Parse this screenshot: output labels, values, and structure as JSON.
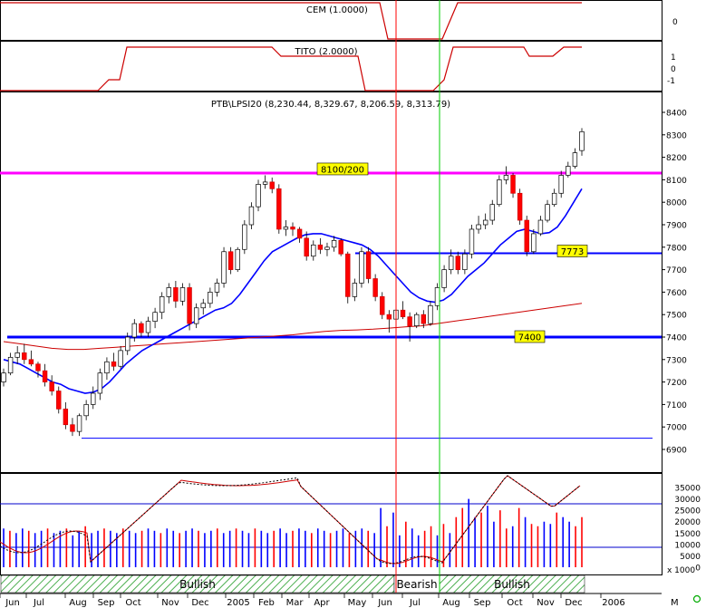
{
  "panels": {
    "cem": {
      "label": "CEM (1.0000)",
      "ticks": [
        "0"
      ]
    },
    "tito": {
      "label": "TITO (2.0000)",
      "ticks": [
        "1",
        "0",
        "-1"
      ]
    },
    "price": {
      "title": "PTB\\LPSI20 (8,230.44, 8,329.67, 8,206.59, 8,313.79)",
      "ticks": [
        "8400",
        "8300",
        "8200",
        "8100",
        "8000",
        "7900",
        "7800",
        "7700",
        "7600",
        "7500",
        "7400",
        "7300",
        "7200",
        "7100",
        "7000",
        "6900"
      ]
    },
    "volume": {
      "ticks": [
        "35000",
        "30000",
        "25000",
        "20000",
        "15000",
        "10000",
        "5000",
        "0"
      ],
      "scale_label": "x 1000"
    }
  },
  "annotations": {
    "resistance_label": "8100/200",
    "level_7773": "7773",
    "level_7400": "7400"
  },
  "signal_bar": {
    "labels": [
      "Bullish",
      "Bearish",
      "Bullish"
    ]
  },
  "x_axis": {
    "labels": [
      "Jun",
      "Jul",
      "Aug",
      "Sep",
      "Oct",
      "Nov",
      "Dec",
      "2005",
      "Feb",
      "Mar",
      "Apr",
      "May",
      "Jun",
      "Jul",
      "Aug",
      "Sep",
      "Oct",
      "Nov",
      "Dec",
      "2006"
    ],
    "extra_label": "M"
  },
  "colors": {
    "up_candle": "#ffffff",
    "down_candle": "#ff0000",
    "moving_avg_short": "#0000ff",
    "moving_avg_long": "#cc0000",
    "resistance_line": "#ff00ff",
    "support_line": "#0000ff",
    "label_bg": "#ffff00",
    "bearish_marker": "#ff0000",
    "bullish_marker": "#00cc00",
    "volume_up": "#0000ff",
    "volume_down": "#ff0000"
  },
  "chart_data": [
    {
      "type": "line",
      "name": "CEM (1.0000)",
      "x": [
        0,
        26,
        27,
        28,
        29,
        30,
        31,
        32,
        33,
        34,
        35,
        36,
        37,
        38,
        39,
        40,
        41,
        42,
        43,
        44,
        45,
        46,
        47,
        48,
        49,
        50,
        51,
        52,
        53,
        54,
        55,
        56,
        57,
        58,
        59,
        60,
        61,
        62,
        63,
        64,
        65,
        66,
        67,
        68,
        69,
        70,
        71,
        72,
        73,
        74,
        75,
        76,
        77,
        78,
        79,
        80,
        81,
        82,
        83,
        84,
        85,
        86,
        87,
        88,
        89,
        90,
        91,
        92,
        93,
        94,
        95,
        96,
        97,
        98,
        99,
        100,
        101,
        102,
        103,
        104,
        105,
        106,
        107,
        108,
        109,
        110,
        111,
        112,
        113,
        114,
        115,
        116,
        117,
        118,
        119,
        120,
        121,
        122,
        123,
        124,
        125,
        126,
        127,
        128,
        129,
        130,
        131,
        132,
        133,
        134,
        135,
        136,
        137,
        138,
        139,
        140,
        141,
        142,
        143,
        144,
        145,
        146,
        147,
        148,
        149,
        150,
        151,
        152,
        153,
        154,
        155,
        156,
        157,
        158,
        159,
        160
      ],
      "values_summary": "stepwise: 1 until week ~105, 0 until ~126, then 1"
    },
    {
      "type": "candlestick",
      "name": "PTB\\LPSI20",
      "period": "weekly",
      "ylim": [
        6900,
        8400
      ],
      "x_labels": [
        "Jun",
        "Jul",
        "Aug",
        "Sep",
        "Oct",
        "Nov",
        "Dec",
        "2005",
        "Feb",
        "Mar",
        "Apr",
        "May",
        "Jun",
        "Jul",
        "Aug",
        "Sep",
        "Oct",
        "Nov",
        "Dec",
        "2006"
      ],
      "candles": [
        [
          7200,
          7260,
          7180,
          7240
        ],
        [
          7240,
          7330,
          7230,
          7310
        ],
        [
          7310,
          7360,
          7280,
          7330
        ],
        [
          7330,
          7370,
          7280,
          7300
        ],
        [
          7300,
          7340,
          7270,
          7280
        ],
        [
          7280,
          7290,
          7220,
          7250
        ],
        [
          7250,
          7280,
          7180,
          7200
        ],
        [
          7200,
          7230,
          7140,
          7160
        ],
        [
          7160,
          7180,
          7060,
          7080
        ],
        [
          7080,
          7110,
          6990,
          7010
        ],
        [
          7010,
          7040,
          6960,
          6980
        ],
        [
          6980,
          7060,
          6960,
          7050
        ],
        [
          7050,
          7120,
          7030,
          7100
        ],
        [
          7100,
          7180,
          7080,
          7150
        ],
        [
          7150,
          7260,
          7120,
          7240
        ],
        [
          7240,
          7310,
          7210,
          7290
        ],
        [
          7290,
          7330,
          7250,
          7270
        ],
        [
          7270,
          7360,
          7260,
          7340
        ],
        [
          7340,
          7420,
          7320,
          7400
        ],
        [
          7400,
          7480,
          7380,
          7460
        ],
        [
          7460,
          7470,
          7400,
          7420
        ],
        [
          7420,
          7490,
          7400,
          7470
        ],
        [
          7470,
          7530,
          7440,
          7510
        ],
        [
          7510,
          7600,
          7480,
          7580
        ],
        [
          7580,
          7640,
          7550,
          7620
        ],
        [
          7620,
          7650,
          7530,
          7560
        ],
        [
          7560,
          7640,
          7540,
          7620
        ],
        [
          7620,
          7640,
          7430,
          7460
        ],
        [
          7460,
          7550,
          7440,
          7530
        ],
        [
          7530,
          7570,
          7500,
          7550
        ],
        [
          7550,
          7620,
          7530,
          7600
        ],
        [
          7600,
          7660,
          7580,
          7640
        ],
        [
          7640,
          7800,
          7620,
          7780
        ],
        [
          7780,
          7800,
          7680,
          7700
        ],
        [
          7700,
          7800,
          7690,
          7790
        ],
        [
          7790,
          7920,
          7770,
          7900
        ],
        [
          7900,
          8000,
          7880,
          7980
        ],
        [
          7980,
          8100,
          7960,
          8080
        ],
        [
          8080,
          8120,
          8060,
          8090
        ],
        [
          8090,
          8110,
          8040,
          8060
        ],
        [
          8060,
          8080,
          7860,
          7880
        ],
        [
          7880,
          7920,
          7850,
          7890
        ],
        [
          7890,
          7910,
          7850,
          7880
        ],
        [
          7880,
          7890,
          7820,
          7840
        ],
        [
          7840,
          7870,
          7740,
          7760
        ],
        [
          7760,
          7830,
          7740,
          7810
        ],
        [
          7810,
          7840,
          7770,
          7790
        ],
        [
          7790,
          7820,
          7760,
          7800
        ],
        [
          7800,
          7850,
          7780,
          7830
        ],
        [
          7830,
          7840,
          7760,
          7770
        ],
        [
          7770,
          7780,
          7550,
          7580
        ],
        [
          7580,
          7660,
          7560,
          7640
        ],
        [
          7640,
          7800,
          7620,
          7780
        ],
        [
          7780,
          7800,
          7640,
          7660
        ],
        [
          7660,
          7680,
          7560,
          7580
        ],
        [
          7580,
          7600,
          7480,
          7500
        ],
        [
          7500,
          7520,
          7420,
          7480
        ],
        [
          7480,
          7540,
          7460,
          7520
        ],
        [
          7520,
          7560,
          7480,
          7490
        ],
        [
          7490,
          7510,
          7380,
          7450
        ],
        [
          7450,
          7510,
          7440,
          7500
        ],
        [
          7500,
          7520,
          7440,
          7460
        ],
        [
          7460,
          7560,
          7450,
          7540
        ],
        [
          7540,
          7640,
          7520,
          7620
        ],
        [
          7620,
          7720,
          7600,
          7700
        ],
        [
          7700,
          7790,
          7680,
          7760
        ],
        [
          7760,
          7780,
          7680,
          7700
        ],
        [
          7700,
          7790,
          7680,
          7770
        ],
        [
          7770,
          7900,
          7750,
          7880
        ],
        [
          7880,
          7940,
          7860,
          7900
        ],
        [
          7900,
          7950,
          7880,
          7920
        ],
        [
          7920,
          8010,
          7900,
          7990
        ],
        [
          7990,
          8120,
          7980,
          8100
        ],
        [
          8100,
          8160,
          8080,
          8120
        ],
        [
          8120,
          8130,
          8020,
          8040
        ],
        [
          8040,
          8060,
          7900,
          7920
        ],
        [
          7920,
          7940,
          7760,
          7780
        ],
        [
          7780,
          7880,
          7770,
          7860
        ],
        [
          7860,
          7940,
          7850,
          7920
        ],
        [
          7920,
          8010,
          7910,
          7990
        ],
        [
          7990,
          8060,
          7980,
          8040
        ],
        [
          8040,
          8140,
          8020,
          8120
        ],
        [
          8120,
          8180,
          8110,
          8160
        ],
        [
          8160,
          8240,
          8150,
          8220
        ],
        [
          8230,
          8330,
          8207,
          8314
        ]
      ],
      "series": [
        {
          "name": "short moving average",
          "values": [
            7300,
            7290,
            7280,
            7260,
            7240,
            7220,
            7200,
            7190,
            7170,
            7160,
            7150,
            7155,
            7170,
            7200,
            7240,
            7280,
            7310,
            7340,
            7360,
            7380,
            7400,
            7420,
            7440,
            7460,
            7480,
            7500,
            7520,
            7530,
            7550,
            7590,
            7640,
            7690,
            7740,
            7780,
            7800,
            7820,
            7840,
            7855,
            7860,
            7860,
            7850,
            7840,
            7830,
            7820,
            7810,
            7790,
            7760,
            7720,
            7680,
            7640,
            7600,
            7575,
            7560,
            7555,
            7565,
            7590,
            7630,
            7670,
            7700,
            7730,
            7770,
            7810,
            7840,
            7870,
            7880,
            7870,
            7860,
            7865,
            7890,
            7940,
            8000,
            8060
          ]
        },
        {
          "name": "long moving average",
          "values": [
            7380,
            7370,
            7360,
            7350,
            7345,
            7345,
            7350,
            7355,
            7360,
            7365,
            7370,
            7375,
            7380,
            7385,
            7390,
            7395,
            7400,
            7405,
            7410,
            7418,
            7425,
            7430,
            7432,
            7435,
            7440,
            7445,
            7450,
            7460,
            7470,
            7480,
            7490,
            7500,
            7510,
            7520,
            7530,
            7540,
            7550
          ]
        }
      ],
      "levels": [
        {
          "value": 8130,
          "label": "8100/200"
        },
        {
          "value": 7773,
          "label": "7773"
        },
        {
          "value": 7400,
          "label": "7400"
        },
        {
          "value": 6950,
          "label": ""
        }
      ]
    },
    {
      "type": "bar",
      "name": "volume",
      "ylim": [
        0,
        40000
      ],
      "values": [
        17000,
        16000,
        15000,
        17000,
        16000,
        15000,
        16000,
        17000,
        15000,
        16000,
        17000,
        14000,
        16000,
        18000,
        15000,
        16000,
        17000,
        16000,
        15000,
        17000,
        16000,
        15000,
        16000,
        17000,
        16000,
        15000,
        17000,
        16000,
        15000,
        16000,
        17000,
        16000,
        15000,
        16000,
        17000,
        15000,
        16000,
        17000,
        16000,
        15000,
        17000,
        16000,
        15000,
        16000,
        17000,
        15000,
        16000,
        17000,
        16000,
        15000,
        17000,
        16000,
        15000,
        16000,
        17000,
        15000,
        16000,
        17000,
        16000,
        15000,
        26000,
        18000,
        24000,
        14000,
        20000,
        17000,
        14000,
        16000,
        18000,
        14000,
        19000,
        15000,
        22000,
        26000,
        30000,
        22000,
        24000,
        27000,
        20000,
        25000,
        17000,
        18000,
        26000,
        22000,
        19000,
        18000,
        20000,
        19000,
        24000,
        22000,
        20000,
        18000,
        22000
      ]
    }
  ]
}
